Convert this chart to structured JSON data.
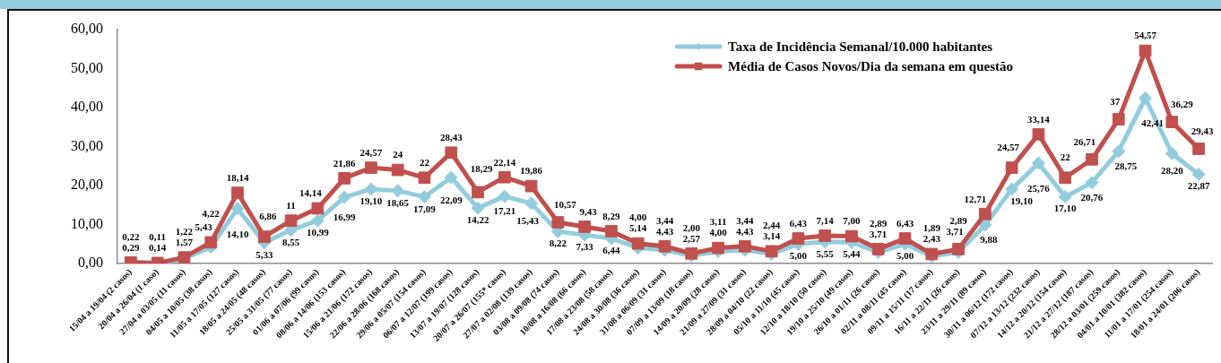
{
  "chart_data": {
    "type": "line",
    "categories": [
      "15/04 a 19/04 (2 casos)",
      "20/04 a 26/04 (1 caso)",
      "27/04 a 03/05 (11 casos)",
      "04/05 a 10/05 (38 casos)",
      "11/05 a 17/05 (127 casos)",
      "18/05 a 24/05 (48 casos)",
      "25/05 a 31/05 (77 casos)",
      "01/06 a 07/06 (99 casos)",
      "08/06 a 14/06 (153 casos)",
      "15/06 a 21/06 (172 casos)",
      "22/06 a 28/06 (168 casos)",
      "29/06 a 05/07 (154 casos)",
      "06/07 a 12/07 (199 casos)",
      "13/07 a 19/07 (128 casos)",
      "20/07 a 26/07 (155* casos)",
      "27/07 a 02/08 (139 casos)",
      "03/08 a 09/08 (74 casos)",
      "10/08 a 16/08 (66 casos)",
      "17/08 a 23/08 (58 casos)",
      "24/08 a 30/08 (36 casos)",
      "31/08 a 06/09 (31 casos)",
      "07/09 a 13/09 (18 casos)",
      "14/09 a 20/09 (28 casos)",
      "21/09 a 27/09 (31 casos)",
      "28/09 a 04/10 (22 casos)",
      "05/10 a 11/10 (45 casos)",
      "12/10 a 18/10 (50 casos)",
      "19/10 a 25/10 (49 casos)",
      "26/10 a 01/11 (26 casos)",
      "02/11 a 08/11 (45 casos)",
      "09/11 a 15/11 (17 casos)",
      "16/11 a 22/11 (26 casos)",
      "23/11 a 29/11 (89 casos)",
      "30/11 a 06/12 (172 casos)",
      "07/12 a 13/12 (232 casos)",
      "14/12 a 20/12 (154 casos)",
      "21/12 a 27/12 (187 casos)",
      "28/12 a 03/01 (259 casos)",
      "04/01 a 10/01 (382 casos)",
      "11/01 a 17/01 (254 casos)",
      "18/01 a 24/01 (206 casos)"
    ],
    "series": [
      {
        "name": "Taxa de Incidência Semanal/10.000 habitantes",
        "color": "#93cddd",
        "marker": "diamond",
        "values": [
          0.22,
          0.11,
          1.22,
          4.22,
          14.1,
          5.33,
          8.55,
          10.99,
          16.99,
          19.1,
          18.65,
          17.09,
          22.09,
          14.22,
          17.21,
          15.43,
          8.22,
          7.33,
          6.44,
          4.0,
          3.44,
          2.0,
          3.11,
          3.44,
          2.44,
          5.0,
          5.55,
          5.44,
          2.89,
          5.0,
          1.89,
          2.89,
          9.88,
          19.1,
          25.76,
          17.1,
          20.76,
          28.75,
          42.41,
          28.2,
          22.87
        ],
        "value_labels": [
          "0,22",
          "0,11",
          "1,22",
          "4,22",
          "14,10",
          "5,33",
          "8,55",
          "10,99",
          "16,99",
          "19,10",
          "18,65",
          "17,09",
          "22,09",
          "14,22",
          "17,21",
          "15,43",
          "8,22",
          "7,33",
          "6,44",
          "4,00",
          "3,44",
          "2,00",
          "3,11",
          "3,44",
          "2,44",
          "5,00",
          "5,55",
          "5,44",
          "2,89",
          "5,00",
          "1,89",
          "2,89",
          "9,88",
          "19,10",
          "25,76",
          "17,10",
          "20,76",
          "28,75",
          "42,41",
          "28,20",
          "22,87"
        ]
      },
      {
        "name": "Média de Casos Novos/Dia da semana em questão",
        "color": "#c0504d",
        "marker": "square",
        "values": [
          0.29,
          0.14,
          1.57,
          5.43,
          18.14,
          6.86,
          11,
          14.14,
          21.86,
          24.57,
          24,
          22,
          28.43,
          18.29,
          22.14,
          19.86,
          10.57,
          9.43,
          8.29,
          5.14,
          4.43,
          2.57,
          4.0,
          4.43,
          3.14,
          6.43,
          7.14,
          7.0,
          3.71,
          6.43,
          2.43,
          3.71,
          12.71,
          24.57,
          33.14,
          22,
          26.71,
          37,
          54.57,
          36.29,
          29.43
        ],
        "value_labels": [
          "0,29",
          "0,14",
          "1,57",
          "5,43",
          "18,14",
          "6,86",
          "11",
          "14,14",
          "21,86",
          "24,57",
          "24",
          "22",
          "28,43",
          "18,29",
          "22,14",
          "19,86",
          "10,57",
          "9,43",
          "8,29",
          "5,14",
          "4,43",
          "2,57",
          "4,00",
          "4,43",
          "3,14",
          "6,43",
          "7,14",
          "7,00",
          "3,71",
          "6,43",
          "2,43",
          "3,71",
          "12,71",
          "24,57",
          "33,14",
          "22",
          "26,71",
          "37",
          "54,57",
          "36,29",
          "29,43"
        ]
      }
    ],
    "ylim": [
      0,
      60
    ],
    "yticks": [
      {
        "value": 0,
        "label": "0,00"
      },
      {
        "value": 10,
        "label": "10,00"
      },
      {
        "value": 20,
        "label": "20,00"
      },
      {
        "value": 30,
        "label": "30,00"
      },
      {
        "value": 40,
        "label": "40,00"
      },
      {
        "value": 50,
        "label": "50,00"
      },
      {
        "value": 60,
        "label": "60,00"
      }
    ],
    "legend": "top right"
  }
}
